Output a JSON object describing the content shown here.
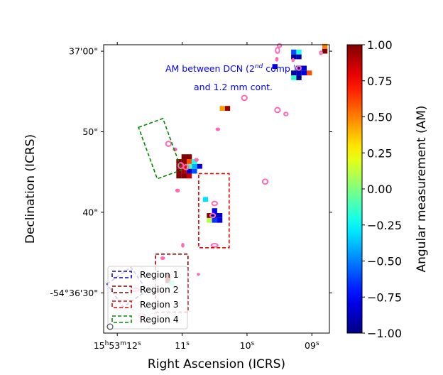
{
  "chart_data": {
    "type": "heatmap",
    "title": "AM between DCN (2nd comp.) and 1.2 mm cont.",
    "annotation": {
      "line1_prefix": "AM between DCN (2",
      "line1_sup": "nd",
      "line1_suffix": " comp.)",
      "line2": "and 1.2 mm cont.",
      "color": "#0000ff"
    },
    "xlabel": "Right Ascension (ICRS)",
    "ylabel": "Declination (ICRS)",
    "x_unit": "s (RA offset from 15h53m)",
    "xlim": [
      12.21,
      8.73
    ],
    "ylim": [
      61.3,
      25.5
    ],
    "x_ticks": [
      {
        "value": 12,
        "main": "15",
        "sup1": "h",
        "mid": "53",
        "sup2": "m",
        "tail": "12",
        "sup3": "s"
      },
      {
        "value": 11,
        "main": "",
        "sup1": "",
        "mid": "",
        "sup2": "",
        "tail": "11",
        "sup3": "s"
      },
      {
        "value": 10,
        "main": "",
        "sup1": "",
        "mid": "",
        "sup2": "",
        "tail": "10",
        "sup3": "s"
      },
      {
        "value": 9,
        "main": "",
        "sup1": "",
        "mid": "",
        "sup2": "",
        "tail": "09",
        "sup3": "s"
      }
    ],
    "y_ticks": [
      {
        "value": 30.5,
        "label": "-54°36'30\""
      },
      {
        "value": 40.5,
        "label": "40\""
      },
      {
        "value": 50.5,
        "label": "50\""
      },
      {
        "value": 60.5,
        "label": "37'00\""
      }
    ],
    "colorbar": {
      "label": "Angular measurement (AM)",
      "min": -1.0,
      "max": 1.0,
      "ticks": [
        {
          "value": 1.0,
          "label": "1.00"
        },
        {
          "value": 0.75,
          "label": "0.75"
        },
        {
          "value": 0.5,
          "label": "0.50"
        },
        {
          "value": 0.25,
          "label": "0.25"
        },
        {
          "value": 0.0,
          "label": "0.00"
        },
        {
          "value": -0.25,
          "label": "−0.25"
        },
        {
          "value": -0.5,
          "label": "−0.50"
        },
        {
          "value": -0.75,
          "label": "−0.75"
        },
        {
          "value": -1.0,
          "label": "−1.00"
        }
      ],
      "colormap": "jet"
    },
    "legend": {
      "placement": "lower-left",
      "entries": [
        {
          "label": "Region 1",
          "color": "#0000cc"
        },
        {
          "label": "Region 2",
          "color": "#8b0000"
        },
        {
          "label": "Region 3",
          "color": "#ee0000"
        },
        {
          "label": "Region 4",
          "color": "#008800"
        }
      ]
    },
    "regions": [
      {
        "name": "Region 1",
        "color": "#0000cc",
        "center": [
          11.85,
          31.2
        ],
        "size": [
          0.45,
          3.5
        ],
        "angle_deg": 35
      },
      {
        "name": "Region 2",
        "color": "#8b0000",
        "center": [
          11.16,
          31.7
        ],
        "size": [
          0.5,
          7.2
        ],
        "angle_deg": 0
      },
      {
        "name": "Region 3",
        "color": "#ee0000",
        "center": [
          10.51,
          40.7
        ],
        "size": [
          0.47,
          9.2
        ],
        "angle_deg": 0
      },
      {
        "name": "Region 4",
        "color": "#008800",
        "center": [
          11.34,
          48.4
        ],
        "size": [
          0.4,
          6.8
        ],
        "angle_deg": 20
      }
    ],
    "am_pixels": [
      {
        "x": 11.22,
        "y": 32.0,
        "am": 1.0
      },
      {
        "x": 11.22,
        "y": 32.5,
        "am": 1.0
      },
      {
        "x": 11.16,
        "y": 31.7,
        "am": -0.15
      },
      {
        "x": 10.58,
        "y": 39.5,
        "am": 0.1
      },
      {
        "x": 10.5,
        "y": 39.5,
        "am": -0.65
      },
      {
        "x": 10.42,
        "y": 39.5,
        "am": -0.8
      },
      {
        "x": 10.58,
        "y": 40.1,
        "am": 1.0
      },
      {
        "x": 10.5,
        "y": 40.1,
        "am": -0.9
      },
      {
        "x": 10.42,
        "y": 40.1,
        "am": -0.85
      },
      {
        "x": 10.5,
        "y": 40.7,
        "am": -0.75
      },
      {
        "x": 10.64,
        "y": 42.1,
        "am": -0.3
      },
      {
        "x": 11.05,
        "y": 45.0,
        "am": 1.0
      },
      {
        "x": 10.97,
        "y": 45.0,
        "am": 1.0
      },
      {
        "x": 10.89,
        "y": 45.0,
        "am": 0.85
      },
      {
        "x": 11.05,
        "y": 45.6,
        "am": 1.0
      },
      {
        "x": 10.97,
        "y": 45.6,
        "am": 0.9
      },
      {
        "x": 10.89,
        "y": 45.6,
        "am": -0.85
      },
      {
        "x": 10.81,
        "y": 45.6,
        "am": -0.6
      },
      {
        "x": 11.05,
        "y": 46.2,
        "am": 1.0
      },
      {
        "x": 10.97,
        "y": 46.2,
        "am": 0.8
      },
      {
        "x": 10.89,
        "y": 46.2,
        "am": -0.1
      },
      {
        "x": 10.81,
        "y": 46.2,
        "am": -0.4
      },
      {
        "x": 10.73,
        "y": 46.2,
        "am": -0.8
      },
      {
        "x": 11.05,
        "y": 46.8,
        "am": 1.0
      },
      {
        "x": 10.97,
        "y": 46.8,
        "am": 1.0
      },
      {
        "x": 10.89,
        "y": 46.8,
        "am": 0.6
      },
      {
        "x": 10.81,
        "y": 46.8,
        "am": -0.2
      },
      {
        "x": 10.97,
        "y": 47.4,
        "am": 1.0
      },
      {
        "x": 10.89,
        "y": 47.4,
        "am": 1.0
      },
      {
        "x": 10.38,
        "y": 53.4,
        "am": 0.45
      },
      {
        "x": 10.3,
        "y": 53.4,
        "am": 0.95
      },
      {
        "x": 9.28,
        "y": 57.2,
        "am": -0.15
      },
      {
        "x": 9.2,
        "y": 57.2,
        "am": -0.95
      },
      {
        "x": 9.28,
        "y": 57.8,
        "am": -0.95
      },
      {
        "x": 9.2,
        "y": 57.8,
        "am": -0.9
      },
      {
        "x": 9.12,
        "y": 57.8,
        "am": -0.8
      },
      {
        "x": 9.04,
        "y": 57.8,
        "am": 0.6
      },
      {
        "x": 9.2,
        "y": 58.4,
        "am": -0.95
      },
      {
        "x": 9.12,
        "y": 58.4,
        "am": -0.85
      },
      {
        "x": 9.57,
        "y": 58.6,
        "am": -0.8
      },
      {
        "x": 9.28,
        "y": 59.8,
        "am": -0.95
      },
      {
        "x": 9.2,
        "y": 59.8,
        "am": -0.9
      },
      {
        "x": 9.28,
        "y": 60.4,
        "am": -0.6
      },
      {
        "x": 9.2,
        "y": 60.4,
        "am": -0.2
      },
      {
        "x": 8.8,
        "y": 60.5,
        "am": 1.0
      },
      {
        "x": 8.8,
        "y": 61.1,
        "am": 0.5
      }
    ],
    "contours": [
      {
        "x": 11.62,
        "y": 27.6,
        "rx": 0.05,
        "ry": 0.35,
        "ring": true
      },
      {
        "x": 11.73,
        "y": 30.9,
        "rx": 0.07,
        "ry": 0.18,
        "ring": true
      },
      {
        "x": 11.3,
        "y": 34.8,
        "rx": 0.03,
        "ry": 0.18,
        "ring": false
      },
      {
        "x": 10.75,
        "y": 32.8,
        "rx": 0.02,
        "ry": 0.12,
        "ring": false
      },
      {
        "x": 10.99,
        "y": 36.4,
        "rx": 0.02,
        "ry": 0.25,
        "ring": false
      },
      {
        "x": 10.5,
        "y": 36.4,
        "rx": 0.05,
        "ry": 0.2,
        "ring": true
      },
      {
        "x": 10.53,
        "y": 40.1,
        "rx": 0.04,
        "ry": 0.25,
        "ring": true
      },
      {
        "x": 10.5,
        "y": 41.6,
        "rx": 0.04,
        "ry": 0.25,
        "ring": true
      },
      {
        "x": 11.07,
        "y": 43.2,
        "rx": 0.03,
        "ry": 0.2,
        "ring": false
      },
      {
        "x": 9.72,
        "y": 44.3,
        "rx": 0.04,
        "ry": 0.3,
        "ring": true
      },
      {
        "x": 11.02,
        "y": 46.3,
        "rx": 0.04,
        "ry": 0.35,
        "ring": true
      },
      {
        "x": 10.94,
        "y": 46.1,
        "rx": 0.04,
        "ry": 0.3,
        "ring": true
      },
      {
        "x": 10.78,
        "y": 47.0,
        "rx": 0.03,
        "ry": 0.2,
        "ring": false
      },
      {
        "x": 11.11,
        "y": 48.3,
        "rx": 0.03,
        "ry": 0.2,
        "ring": false
      },
      {
        "x": 11.21,
        "y": 49.0,
        "rx": 0.04,
        "ry": 0.3,
        "ring": true
      },
      {
        "x": 10.45,
        "y": 50.8,
        "rx": 0.03,
        "ry": 0.18,
        "ring": false
      },
      {
        "x": 9.4,
        "y": 52.7,
        "rx": 0.03,
        "ry": 0.2,
        "ring": true
      },
      {
        "x": 9.53,
        "y": 53.2,
        "rx": 0.04,
        "ry": 0.3,
        "ring": true
      },
      {
        "x": 10.04,
        "y": 54.7,
        "rx": 0.04,
        "ry": 0.3,
        "ring": true
      },
      {
        "x": 9.54,
        "y": 59.5,
        "rx": 0.02,
        "ry": 0.25,
        "ring": false
      },
      {
        "x": 9.29,
        "y": 59.4,
        "rx": 0.02,
        "ry": 0.2,
        "ring": false
      },
      {
        "x": 9.2,
        "y": 58.4,
        "rx": 0.03,
        "ry": 0.25,
        "ring": true
      },
      {
        "x": 9.53,
        "y": 60.6,
        "rx": 0.03,
        "ry": 0.35,
        "ring": true
      },
      {
        "x": 9.5,
        "y": 61.2,
        "rx": 0.03,
        "ry": 0.2,
        "ring": true
      },
      {
        "x": 8.86,
        "y": 60.3,
        "rx": 0.02,
        "ry": 0.2,
        "ring": true
      }
    ]
  }
}
